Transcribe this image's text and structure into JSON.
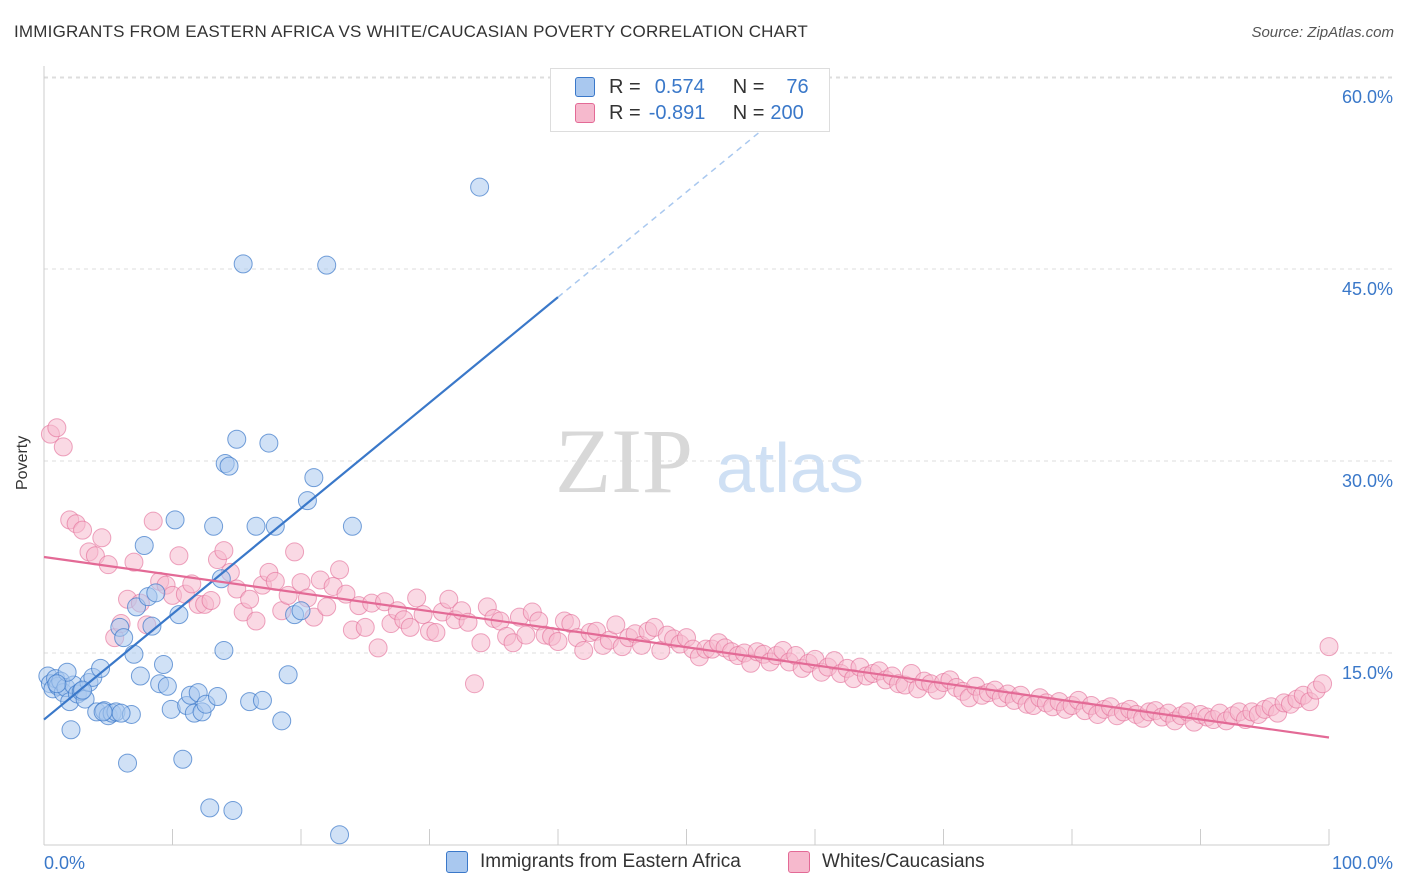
{
  "title": "IMMIGRANTS FROM EASTERN AFRICA VS WHITE/CAUCASIAN POVERTY CORRELATION CHART",
  "source": "Source: ZipAtlas.com",
  "watermark": {
    "part1": "ZIP",
    "part2": "atlas"
  },
  "legend": {
    "row1": {
      "r_label": "R =",
      "r_value": "0.574",
      "n_label": "N =",
      "n_value": "76"
    },
    "row2": {
      "r_label": "R =",
      "r_value": "-0.891",
      "n_label": "N =",
      "n_value": "200"
    }
  },
  "colors": {
    "blue": "#3a78c9",
    "blue_fill": "#a9c8ef",
    "pink": "#e36a96",
    "pink_fill": "#f6b9cd",
    "grid": "#dddddd"
  },
  "chart_data": {
    "type": "scatter",
    "title": "IMMIGRANTS FROM EASTERN AFRICA VS WHITE/CAUCASIAN POVERTY CORRELATION CHART",
    "xlabel": "",
    "ylabel": "Poverty",
    "xlim": [
      0,
      100
    ],
    "ylim": [
      0,
      62
    ],
    "x_tick_labels": [
      "0.0%",
      "100.0%"
    ],
    "y_ticks": [
      15,
      30,
      45,
      60
    ],
    "y_tick_labels": [
      "15.0%",
      "30.0%",
      "45.0%",
      "60.0%"
    ],
    "grid": true,
    "series": [
      {
        "name": "Immigrants from Eastern Africa",
        "color": "blue",
        "trendline": {
          "x": [
            0,
            40
          ],
          "y": [
            9.8,
            42.8
          ],
          "dashed_to": [
            58,
            57.6
          ]
        },
        "points": [
          [
            0.3,
            13.2
          ],
          [
            0.5,
            12.6
          ],
          [
            0.7,
            12.2
          ],
          [
            0.9,
            13.0
          ],
          [
            1.1,
            12.4
          ],
          [
            1.3,
            12.8
          ],
          [
            1.5,
            11.9
          ],
          [
            1.7,
            12.3
          ],
          [
            2.0,
            11.2
          ],
          [
            2.3,
            12.5
          ],
          [
            2.6,
            11.8
          ],
          [
            2.9,
            12.0
          ],
          [
            3.2,
            11.4
          ],
          [
            3.5,
            12.7
          ],
          [
            3.8,
            13.1
          ],
          [
            4.1,
            10.4
          ],
          [
            4.4,
            13.8
          ],
          [
            4.7,
            10.5
          ],
          [
            5.0,
            10.1
          ],
          [
            5.3,
            10.3
          ],
          [
            5.6,
            10.4
          ],
          [
            5.9,
            17.0
          ],
          [
            6.2,
            16.2
          ],
          [
            6.5,
            6.4
          ],
          [
            6.8,
            10.2
          ],
          [
            7.0,
            14.9
          ],
          [
            7.2,
            18.6
          ],
          [
            7.5,
            13.2
          ],
          [
            7.8,
            23.4
          ],
          [
            8.1,
            19.4
          ],
          [
            8.4,
            17.1
          ],
          [
            8.7,
            19.7
          ],
          [
            9.0,
            12.6
          ],
          [
            9.3,
            14.1
          ],
          [
            9.6,
            12.4
          ],
          [
            9.9,
            10.6
          ],
          [
            10.2,
            25.4
          ],
          [
            10.5,
            18.0
          ],
          [
            10.8,
            6.7
          ],
          [
            11.1,
            10.9
          ],
          [
            11.4,
            11.7
          ],
          [
            11.7,
            10.3
          ],
          [
            12.0,
            11.9
          ],
          [
            12.3,
            10.4
          ],
          [
            12.6,
            11.0
          ],
          [
            12.9,
            2.9
          ],
          [
            13.2,
            24.9
          ],
          [
            13.5,
            11.6
          ],
          [
            13.8,
            20.8
          ],
          [
            14.1,
            29.8
          ],
          [
            14.4,
            29.6
          ],
          [
            14.7,
            2.7
          ],
          [
            15.0,
            31.7
          ],
          [
            15.5,
            45.4
          ],
          [
            16.0,
            11.2
          ],
          [
            16.5,
            24.9
          ],
          [
            17.0,
            11.3
          ],
          [
            17.5,
            31.4
          ],
          [
            18.0,
            24.9
          ],
          [
            18.5,
            9.7
          ],
          [
            19.0,
            13.3
          ],
          [
            19.5,
            18.0
          ],
          [
            20.0,
            18.3
          ],
          [
            20.5,
            26.9
          ],
          [
            21.0,
            28.7
          ],
          [
            22.0,
            45.3
          ],
          [
            23.0,
            0.8
          ],
          [
            24.0,
            24.9
          ],
          [
            33.9,
            51.4
          ],
          [
            1.8,
            13.5
          ],
          [
            3.0,
            12.1
          ],
          [
            4.6,
            10.4
          ],
          [
            6.0,
            10.3
          ],
          [
            1.0,
            12.6
          ],
          [
            2.1,
            9.0
          ],
          [
            14.0,
            15.2
          ]
        ]
      },
      {
        "name": "Whites/Caucasians",
        "color": "pink",
        "trendline": {
          "x": [
            0,
            100
          ],
          "y": [
            22.5,
            8.4
          ]
        },
        "points": [
          [
            0.5,
            32.1
          ],
          [
            1.0,
            32.6
          ],
          [
            1.5,
            31.1
          ],
          [
            2.0,
            25.4
          ],
          [
            2.5,
            25.1
          ],
          [
            3.0,
            24.6
          ],
          [
            3.5,
            22.9
          ],
          [
            4.0,
            22.6
          ],
          [
            4.5,
            24.0
          ],
          [
            5.0,
            21.9
          ],
          [
            5.5,
            16.2
          ],
          [
            6.0,
            17.3
          ],
          [
            6.5,
            19.2
          ],
          [
            7.0,
            22.1
          ],
          [
            7.5,
            18.9
          ],
          [
            8.0,
            17.2
          ],
          [
            8.5,
            25.3
          ],
          [
            9.0,
            20.6
          ],
          [
            9.5,
            20.3
          ],
          [
            10.0,
            19.5
          ],
          [
            10.5,
            22.6
          ],
          [
            11.0,
            19.6
          ],
          [
            11.5,
            20.4
          ],
          [
            12.0,
            18.8
          ],
          [
            12.5,
            18.8
          ],
          [
            13.0,
            19.1
          ],
          [
            13.5,
            22.3
          ],
          [
            14.0,
            23.0
          ],
          [
            14.5,
            21.3
          ],
          [
            15.0,
            20.0
          ],
          [
            15.5,
            18.2
          ],
          [
            16.0,
            19.2
          ],
          [
            16.5,
            17.5
          ],
          [
            17.0,
            20.3
          ],
          [
            17.5,
            21.3
          ],
          [
            18.0,
            20.6
          ],
          [
            18.5,
            18.3
          ],
          [
            19.0,
            19.5
          ],
          [
            19.5,
            22.9
          ],
          [
            20.0,
            20.5
          ],
          [
            20.5,
            19.3
          ],
          [
            21.0,
            17.8
          ],
          [
            21.5,
            20.7
          ],
          [
            22.0,
            18.6
          ],
          [
            22.5,
            20.2
          ],
          [
            23.0,
            21.5
          ],
          [
            23.5,
            19.6
          ],
          [
            24.0,
            16.8
          ],
          [
            24.5,
            18.7
          ],
          [
            25.0,
            17.0
          ],
          [
            25.5,
            18.9
          ],
          [
            26.0,
            15.4
          ],
          [
            26.5,
            19.0
          ],
          [
            27.0,
            17.3
          ],
          [
            27.5,
            18.3
          ],
          [
            28.0,
            17.6
          ],
          [
            28.5,
            17.0
          ],
          [
            29.0,
            19.3
          ],
          [
            29.5,
            18.0
          ],
          [
            30.0,
            16.7
          ],
          [
            30.5,
            16.6
          ],
          [
            31.0,
            18.2
          ],
          [
            31.5,
            19.2
          ],
          [
            32.0,
            17.6
          ],
          [
            32.5,
            18.3
          ],
          [
            33.0,
            17.4
          ],
          [
            33.5,
            12.6
          ],
          [
            34.0,
            15.8
          ],
          [
            34.5,
            18.6
          ],
          [
            35.0,
            17.7
          ],
          [
            35.5,
            17.5
          ],
          [
            36.0,
            16.3
          ],
          [
            36.5,
            15.8
          ],
          [
            37.0,
            17.8
          ],
          [
            37.5,
            16.4
          ],
          [
            38.0,
            18.2
          ],
          [
            38.5,
            17.5
          ],
          [
            39.0,
            16.4
          ],
          [
            39.5,
            16.3
          ],
          [
            40.0,
            15.9
          ],
          [
            40.5,
            17.5
          ],
          [
            41.0,
            17.3
          ],
          [
            41.5,
            16.2
          ],
          [
            42.0,
            15.2
          ],
          [
            42.5,
            16.6
          ],
          [
            43.0,
            16.7
          ],
          [
            43.5,
            15.6
          ],
          [
            44.0,
            16.0
          ],
          [
            44.5,
            17.2
          ],
          [
            45.0,
            15.5
          ],
          [
            45.5,
            16.2
          ],
          [
            46.0,
            16.5
          ],
          [
            46.5,
            15.6
          ],
          [
            47.0,
            16.7
          ],
          [
            47.5,
            17.0
          ],
          [
            48.0,
            15.2
          ],
          [
            48.5,
            16.4
          ],
          [
            49.0,
            16.1
          ],
          [
            49.5,
            15.7
          ],
          [
            50.0,
            16.2
          ],
          [
            50.5,
            15.3
          ],
          [
            51.0,
            14.7
          ],
          [
            51.5,
            15.3
          ],
          [
            52.0,
            15.3
          ],
          [
            52.5,
            15.8
          ],
          [
            53.0,
            15.4
          ],
          [
            53.5,
            15.1
          ],
          [
            54.0,
            14.8
          ],
          [
            54.5,
            15.0
          ],
          [
            55.0,
            14.2
          ],
          [
            55.5,
            15.1
          ],
          [
            56.0,
            14.9
          ],
          [
            56.5,
            14.3
          ],
          [
            57.0,
            14.8
          ],
          [
            57.5,
            15.2
          ],
          [
            58.0,
            14.3
          ],
          [
            58.5,
            14.8
          ],
          [
            59.0,
            13.8
          ],
          [
            59.5,
            14.2
          ],
          [
            60.0,
            14.5
          ],
          [
            60.5,
            13.5
          ],
          [
            61.0,
            13.9
          ],
          [
            61.5,
            14.4
          ],
          [
            62.0,
            13.4
          ],
          [
            62.5,
            13.8
          ],
          [
            63.0,
            13.0
          ],
          [
            63.5,
            13.9
          ],
          [
            64.0,
            13.2
          ],
          [
            64.5,
            13.4
          ],
          [
            65.0,
            13.6
          ],
          [
            65.5,
            12.9
          ],
          [
            66.0,
            13.2
          ],
          [
            66.5,
            12.6
          ],
          [
            67.0,
            12.5
          ],
          [
            67.5,
            13.4
          ],
          [
            68.0,
            12.2
          ],
          [
            68.5,
            12.8
          ],
          [
            69.0,
            12.6
          ],
          [
            69.5,
            12.1
          ],
          [
            70.0,
            12.7
          ],
          [
            70.5,
            12.9
          ],
          [
            71.0,
            12.3
          ],
          [
            71.5,
            12.0
          ],
          [
            72.0,
            11.5
          ],
          [
            72.5,
            12.4
          ],
          [
            73.0,
            11.7
          ],
          [
            73.5,
            11.9
          ],
          [
            74.0,
            12.1
          ],
          [
            74.5,
            11.5
          ],
          [
            75.0,
            11.8
          ],
          [
            75.5,
            11.3
          ],
          [
            76.0,
            11.7
          ],
          [
            76.5,
            11.0
          ],
          [
            77.0,
            10.9
          ],
          [
            77.5,
            11.5
          ],
          [
            78.0,
            11.1
          ],
          [
            78.5,
            10.8
          ],
          [
            79.0,
            11.2
          ],
          [
            79.5,
            10.6
          ],
          [
            80.0,
            10.9
          ],
          [
            80.5,
            11.3
          ],
          [
            81.0,
            10.5
          ],
          [
            81.5,
            10.9
          ],
          [
            82.0,
            10.2
          ],
          [
            82.5,
            10.6
          ],
          [
            83.0,
            10.8
          ],
          [
            83.5,
            10.1
          ],
          [
            84.0,
            10.4
          ],
          [
            84.5,
            10.6
          ],
          [
            85.0,
            10.2
          ],
          [
            85.5,
            9.9
          ],
          [
            86.0,
            10.4
          ],
          [
            86.5,
            10.5
          ],
          [
            87.0,
            10.0
          ],
          [
            87.5,
            10.3
          ],
          [
            88.0,
            9.7
          ],
          [
            88.5,
            10.1
          ],
          [
            89.0,
            10.4
          ],
          [
            89.5,
            9.6
          ],
          [
            90.0,
            10.2
          ],
          [
            90.5,
            10.0
          ],
          [
            91.0,
            9.8
          ],
          [
            91.5,
            10.3
          ],
          [
            92.0,
            9.7
          ],
          [
            92.5,
            10.1
          ],
          [
            93.0,
            10.4
          ],
          [
            93.5,
            9.8
          ],
          [
            94.0,
            10.4
          ],
          [
            94.5,
            10.2
          ],
          [
            95.0,
            10.6
          ],
          [
            95.5,
            10.8
          ],
          [
            96.0,
            10.3
          ],
          [
            96.5,
            11.1
          ],
          [
            97.0,
            11.0
          ],
          [
            97.5,
            11.4
          ],
          [
            98.0,
            11.7
          ],
          [
            98.5,
            11.2
          ],
          [
            99.0,
            12.1
          ],
          [
            99.5,
            12.6
          ],
          [
            100.0,
            15.5
          ]
        ]
      }
    ]
  }
}
